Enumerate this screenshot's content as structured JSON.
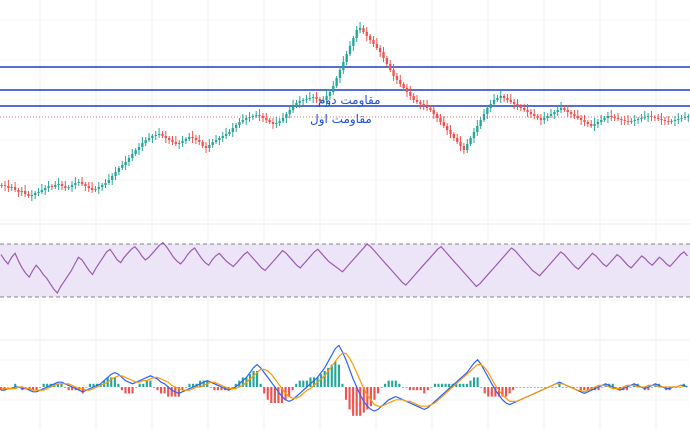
{
  "chart_data": [
    {
      "type": "candlestick",
      "panel": "price",
      "annotations": [
        {
          "text": "مقاومت دوم",
          "color": "#1f4fd6"
        },
        {
          "text": "مقاومت اول",
          "color": "#1f4fd6"
        }
      ],
      "resistance_lines": [
        {
          "level": 67,
          "color": "#1f3fbf",
          "style": "solid"
        },
        {
          "level": 90,
          "color": "#1f3fbf",
          "style": "solid"
        },
        {
          "level": 106,
          "color": "#1f3fbf",
          "style": "solid"
        },
        {
          "level": 117,
          "color": "#e07070",
          "style": "dotted"
        }
      ],
      "close": [
        185,
        186,
        188,
        187,
        190,
        192,
        191,
        194,
        196,
        195,
        193,
        192,
        190,
        188,
        186,
        187,
        185,
        184,
        186,
        188,
        187,
        185,
        183,
        182,
        184,
        186,
        188,
        190,
        189,
        187,
        185,
        183,
        180,
        176,
        172,
        168,
        165,
        162,
        158,
        154,
        150,
        147,
        143,
        140,
        138,
        136,
        135,
        134,
        136,
        138,
        140,
        142,
        144,
        143,
        141,
        139,
        137,
        138,
        140,
        142,
        146,
        148,
        145,
        142,
        140,
        138,
        136,
        134,
        132,
        128,
        125,
        122,
        120,
        118,
        117,
        116,
        115,
        116,
        118,
        120,
        122,
        124,
        123,
        121,
        118,
        114,
        110,
        106,
        103,
        101,
        100,
        99,
        98,
        97,
        99,
        101,
        100,
        96,
        92,
        86,
        78,
        70,
        62,
        54,
        46,
        38,
        30,
        28,
        32,
        36,
        40,
        44,
        48,
        52,
        58,
        64,
        70,
        76,
        80,
        84,
        88,
        92,
        96,
        100,
        102,
        104,
        106,
        108,
        110,
        114,
        118,
        122,
        126,
        130,
        134,
        138,
        142,
        146,
        150,
        144,
        138,
        132,
        126,
        120,
        114,
        108,
        104,
        100,
        98,
        96,
        98,
        100,
        102,
        104,
        106,
        108,
        110,
        112,
        114,
        116,
        118,
        120,
        118,
        116,
        114,
        112,
        110,
        108,
        110,
        112,
        114,
        116,
        118,
        120,
        122,
        124,
        126,
        124,
        122,
        120,
        118,
        116,
        117,
        118,
        119,
        120,
        121,
        122,
        121,
        120,
        119,
        118,
        117,
        116,
        117,
        118,
        119,
        120,
        121,
        122,
        121,
        120,
        119,
        118,
        117,
        116
      ],
      "color_up": "#26a69a",
      "color_down": "#ef5350"
    },
    {
      "type": "line",
      "panel": "rsi",
      "band_upper": 70,
      "band_lower": 30,
      "line_color": "#9b59b6",
      "band_fill": "#ece5f7",
      "values": [
        62,
        58,
        55,
        60,
        63,
        57,
        52,
        48,
        45,
        50,
        54,
        51,
        47,
        44,
        40,
        36,
        33,
        38,
        42,
        46,
        50,
        55,
        60,
        58,
        54,
        50,
        47,
        52,
        56,
        60,
        64,
        66,
        62,
        58,
        56,
        60,
        63,
        66,
        68,
        65,
        61,
        58,
        60,
        63,
        66,
        69,
        71,
        68,
        64,
        60,
        57,
        55,
        58,
        62,
        65,
        67,
        63,
        59,
        56,
        54,
        58,
        61,
        63,
        60,
        57,
        55,
        53,
        56,
        59,
        62,
        64,
        61,
        58,
        55,
        52,
        50,
        53,
        56,
        59,
        62,
        65,
        63,
        60,
        57,
        54,
        52,
        55,
        58,
        61,
        64,
        66,
        63,
        60,
        57,
        55,
        53,
        51,
        49,
        52,
        55,
        58,
        61,
        64,
        67,
        70,
        68,
        65,
        62,
        59,
        56,
        53,
        50,
        47,
        44,
        41,
        39,
        42,
        45,
        48,
        51,
        54,
        57,
        60,
        63,
        66,
        68,
        65,
        62,
        59,
        56,
        53,
        50,
        47,
        44,
        41,
        38,
        40,
        43,
        46,
        49,
        52,
        55,
        58,
        61,
        64,
        67,
        65,
        62,
        59,
        56,
        53,
        50,
        48,
        46,
        49,
        52,
        55,
        58,
        61,
        64,
        62,
        59,
        56,
        53,
        51,
        54,
        57,
        60,
        63,
        61,
        58,
        55,
        53,
        56,
        59,
        62,
        60,
        57,
        54,
        52,
        55,
        58,
        61,
        59,
        56,
        54,
        57,
        60,
        58,
        55,
        53,
        56,
        59,
        62,
        64,
        61
      ]
    },
    {
      "type": "histogram_line",
      "panel": "macd",
      "colors": {
        "macd": "#2962ff",
        "signal": "#ff9800",
        "hist_up": "#26a69a",
        "hist_down": "#ef5350"
      },
      "macd": [
        -2,
        -2,
        -1,
        -1,
        0,
        0,
        -1,
        -1,
        -2,
        -3,
        -3,
        -2,
        -1,
        0,
        1,
        2,
        3,
        3,
        2,
        1,
        0,
        -1,
        -2,
        -3,
        -2,
        -1,
        0,
        1,
        2,
        4,
        6,
        8,
        9,
        8,
        6,
        4,
        3,
        2,
        3,
        4,
        5,
        6,
        7,
        6,
        5,
        3,
        2,
        0,
        -2,
        -3,
        -4,
        -3,
        -2,
        -1,
        0,
        1,
        2,
        3,
        4,
        3,
        2,
        1,
        0,
        -1,
        -2,
        -1,
        0,
        2,
        4,
        6,
        9,
        12,
        14,
        12,
        9,
        6,
        3,
        0,
        -3,
        -6,
        -8,
        -9,
        -8,
        -6,
        -4,
        -2,
        0,
        2,
        4,
        6,
        9,
        12,
        16,
        20,
        24,
        26,
        22,
        17,
        11,
        5,
        0,
        -5,
        -9,
        -12,
        -14,
        -15,
        -14,
        -12,
        -10,
        -8,
        -7,
        -6,
        -7,
        -8,
        -9,
        -10,
        -11,
        -12,
        -13,
        -14,
        -13,
        -11,
        -9,
        -7,
        -5,
        -3,
        -1,
        1,
        3,
        5,
        7,
        9,
        12,
        15,
        17,
        14,
        10,
        6,
        2,
        -2,
        -5,
        -8,
        -10,
        -11,
        -10,
        -9,
        -8,
        -7,
        -6,
        -5,
        -4,
        -3,
        -2,
        -1,
        0,
        1,
        2,
        3,
        2,
        1,
        0,
        -1,
        -2,
        -3,
        -4,
        -3,
        -2,
        -1,
        0,
        1,
        2,
        1,
        0,
        -1,
        -2,
        -1,
        0,
        1,
        2,
        1,
        0,
        -1,
        0,
        1,
        2,
        1,
        0,
        -1,
        -1,
        0,
        0,
        1,
        1,
        0
      ],
      "signal": [
        -1,
        -1,
        -1,
        -1,
        -1,
        0,
        0,
        -1,
        -1,
        -2,
        -2,
        -2,
        -2,
        -1,
        0,
        1,
        2,
        2,
        2,
        2,
        1,
        0,
        -1,
        -1,
        -2,
        -2,
        -1,
        0,
        1,
        2,
        3,
        5,
        6,
        7,
        7,
        6,
        5,
        4,
        3,
        3,
        4,
        4,
        5,
        6,
        6,
        5,
        4,
        3,
        1,
        0,
        -1,
        -2,
        -2,
        -2,
        -1,
        0,
        0,
        1,
        2,
        3,
        3,
        2,
        1,
        0,
        -1,
        -1,
        -1,
        0,
        1,
        3,
        5,
        7,
        9,
        11,
        11,
        10,
        8,
        5,
        2,
        -1,
        -4,
        -6,
        -7,
        -7,
        -6,
        -4,
        -2,
        -1,
        1,
        3,
        5,
        7,
        10,
        13,
        16,
        19,
        21,
        21,
        18,
        14,
        9,
        4,
        -1,
        -5,
        -8,
        -11,
        -12,
        -12,
        -11,
        -10,
        -9,
        -8,
        -8,
        -8,
        -9,
        -9,
        -10,
        -11,
        -12,
        -12,
        -12,
        -11,
        -10,
        -8,
        -6,
        -4,
        -2,
        0,
        2,
        4,
        6,
        8,
        10,
        12,
        14,
        14,
        12,
        9,
        5,
        1,
        -2,
        -5,
        -7,
        -9,
        -9,
        -9,
        -8,
        -7,
        -6,
        -5,
        -4,
        -3,
        -2,
        -1,
        0,
        1,
        2,
        2,
        2,
        1,
        0,
        -1,
        -2,
        -2,
        -3,
        -2,
        -1,
        0,
        1,
        1,
        1,
        0,
        -1,
        -1,
        -1,
        0,
        1,
        1,
        1,
        0,
        0,
        0,
        1,
        1,
        1,
        0,
        0,
        0,
        0,
        0,
        0,
        1,
        0
      ]
    }
  ]
}
